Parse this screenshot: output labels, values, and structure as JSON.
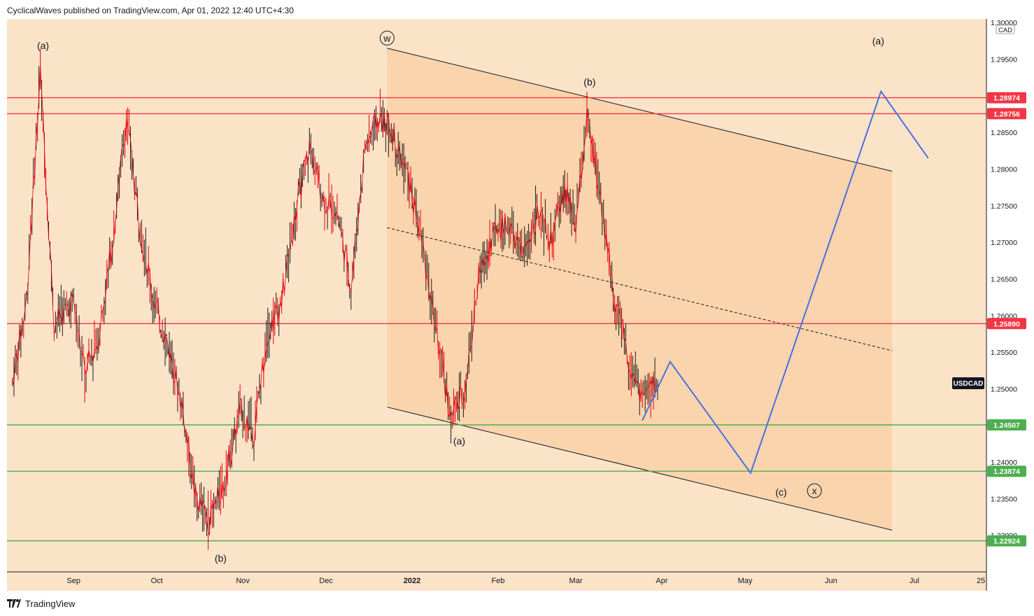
{
  "header": {
    "publisher": "CyclicalWaves published on TradingView.com, Apr 01, 2022 12:40 UTC+4:30"
  },
  "footer": {
    "brand": "TradingView",
    "brand_icon": "tradingview-logo-icon"
  },
  "colors": {
    "background": "#fbe3c8",
    "channel_fill": "#f8d2a8",
    "candle": "#1a1a1a",
    "candle_accent": "#e8000b",
    "resistance": "#f23645",
    "support": "#4caf50",
    "projection": "#4a6fe3",
    "channel_line": "#131722",
    "axis_text": "#131722"
  },
  "chart_data": {
    "type": "line",
    "symbol": "USDCAD",
    "currency": "CAD",
    "x_axis": {
      "labels": [
        "Sep",
        "Oct",
        "Nov",
        "Dec",
        "2022",
        "Feb",
        "Mar",
        "Apr",
        "May",
        "Jun",
        "Jul",
        "25"
      ]
    },
    "y_axis": {
      "range": [
        1.225,
        1.3005
      ],
      "labels": [
        "1.30000",
        "1.29500",
        "1.28500",
        "1.28000",
        "1.27500",
        "1.27000",
        "1.26500",
        "1.26000",
        "1.25500",
        "1.25000",
        "1.24000",
        "1.23500",
        "1.23000"
      ],
      "label_values": [
        1.3,
        1.295,
        1.285,
        1.28,
        1.275,
        1.27,
        1.265,
        1.26,
        1.255,
        1.25,
        1.24,
        1.235,
        1.23
      ]
    },
    "price_series": {
      "name": "USDCAD",
      "x": [
        "2021-08-10",
        "2021-08-15",
        "2021-08-20",
        "2021-08-25",
        "2021-09-01",
        "2021-09-05",
        "2021-09-10",
        "2021-09-15",
        "2021-09-20",
        "2021-09-25",
        "2021-09-30",
        "2021-10-05",
        "2021-10-10",
        "2021-10-15",
        "2021-10-20",
        "2021-10-25",
        "2021-10-31",
        "2021-11-05",
        "2021-11-10",
        "2021-11-15",
        "2021-11-20",
        "2021-11-25",
        "2021-11-30",
        "2021-12-05",
        "2021-12-10",
        "2021-12-15",
        "2021-12-20",
        "2021-12-25",
        "2021-12-31",
        "2022-01-05",
        "2022-01-10",
        "2022-01-15",
        "2022-01-20",
        "2022-01-25",
        "2022-01-31",
        "2022-02-05",
        "2022-02-10",
        "2022-02-15",
        "2022-02-20",
        "2022-02-25",
        "2022-03-01",
        "2022-03-05",
        "2022-03-10",
        "2022-03-15",
        "2022-03-20",
        "2022-03-25",
        "2022-03-31"
      ],
      "close": [
        1.251,
        1.262,
        1.293,
        1.259,
        1.262,
        1.252,
        1.257,
        1.27,
        1.287,
        1.272,
        1.262,
        1.256,
        1.248,
        1.235,
        1.232,
        1.237,
        1.247,
        1.244,
        1.258,
        1.262,
        1.274,
        1.283,
        1.276,
        1.274,
        1.264,
        1.283,
        1.287,
        1.285,
        1.278,
        1.269,
        1.257,
        1.246,
        1.25,
        1.265,
        1.272,
        1.272,
        1.268,
        1.274,
        1.27,
        1.277,
        1.272,
        1.287,
        1.276,
        1.262,
        1.254,
        1.249,
        1.251
      ]
    },
    "horizontal_levels": {
      "resistance": [
        1.28974,
        1.28756,
        1.2589
      ],
      "support": [
        1.24507,
        1.23874,
        1.22924
      ],
      "resistance_labels": [
        "1.28974",
        "1.28756",
        "1.25890"
      ],
      "support_labels": [
        "1.24507",
        "1.23874",
        "1.22924"
      ]
    },
    "channel": {
      "upper": [
        {
          "x": "2021-12-23",
          "y": 1.2965
        },
        {
          "x": "2022-06-23",
          "y": 1.2797
        }
      ],
      "lower": [
        {
          "x": "2021-12-23",
          "y": 1.2475
        },
        {
          "x": "2022-06-23",
          "y": 1.2307
        }
      ],
      "midline": [
        {
          "x": "2021-12-23",
          "y": 1.272
        },
        {
          "x": "2022-06-23",
          "y": 1.2552
        }
      ]
    },
    "projection": {
      "points": [
        {
          "x": "2022-03-25",
          "y": 1.2457
        },
        {
          "x": "2022-04-04",
          "y": 1.2537
        },
        {
          "x": "2022-05-03",
          "y": 1.2385
        },
        {
          "x": "2022-06-19",
          "y": 1.2906
        },
        {
          "x": "2022-07-06",
          "y": 1.2815
        }
      ]
    },
    "annotations": [
      {
        "text": "(a)",
        "x": "2021-08-21",
        "y": 1.2965
      },
      {
        "text": "(b)",
        "x": "2021-10-24",
        "y": 1.2265
      },
      {
        "text": "w",
        "x": "2021-12-23",
        "y": 1.2975,
        "circled": true
      },
      {
        "text": "(a)",
        "x": "2022-01-18",
        "y": 1.2425
      },
      {
        "text": "(b)",
        "x": "2022-03-06",
        "y": 1.2915
      },
      {
        "text": "(c)",
        "x": "2022-05-14",
        "y": 1.2355
      },
      {
        "text": "x",
        "x": "2022-05-26",
        "y": 1.2357,
        "circled": true
      },
      {
        "text": "(a)",
        "x": "2022-06-18",
        "y": 1.2971
      }
    ],
    "price_badge": "USDCAD"
  }
}
